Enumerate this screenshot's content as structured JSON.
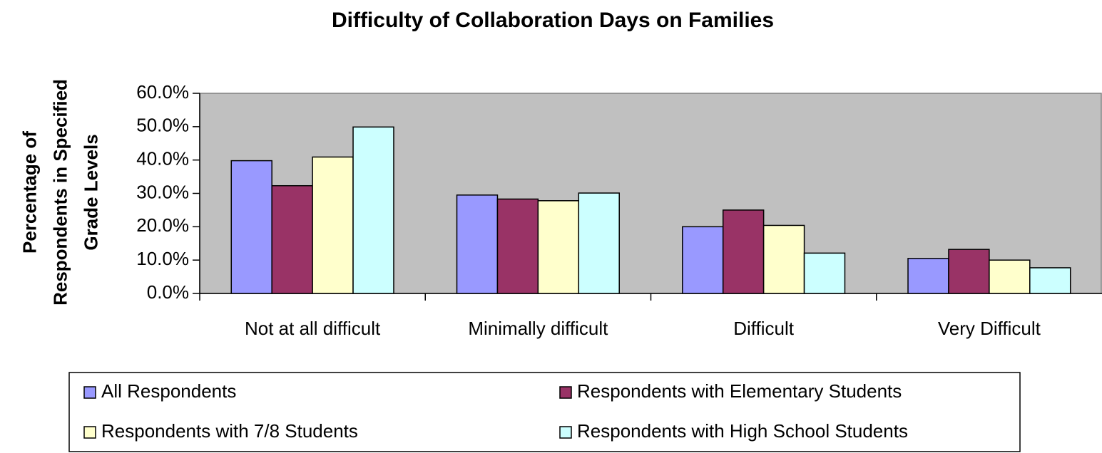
{
  "chart_data": {
    "type": "bar",
    "title": "Difficulty of Collaboration Days on Families",
    "ylabel": "Percentage of Respondents in Specified Grade Levels",
    "categories": [
      "Not at all difficult",
      "Minimally difficult",
      "Difficult",
      "Very Difficult"
    ],
    "series": [
      {
        "name": "All Respondents",
        "color": "#9999ff",
        "values": [
          39.8,
          29.5,
          20.0,
          10.5
        ]
      },
      {
        "name": "Respondents with Elementary Students",
        "color": "#993366",
        "values": [
          32.3,
          28.3,
          25.0,
          13.2
        ]
      },
      {
        "name": "Respondents with 7/8 Students",
        "color": "#ffffcc",
        "values": [
          40.9,
          27.8,
          20.4,
          10.0
        ]
      },
      {
        "name": "Respondents with High School Students",
        "color": "#ccffff",
        "values": [
          49.9,
          30.1,
          12.1,
          7.7
        ]
      }
    ],
    "ylim": [
      0,
      60
    ],
    "yticks": [
      {
        "value": 0,
        "label": "0.0%"
      },
      {
        "value": 10,
        "label": "10.0%"
      },
      {
        "value": 20,
        "label": "20.0%"
      },
      {
        "value": 30,
        "label": "30.0%"
      },
      {
        "value": 40,
        "label": "40.0%"
      },
      {
        "value": 50,
        "label": "50.0%"
      },
      {
        "value": 60,
        "label": "60.0%"
      }
    ],
    "grid": false,
    "legend": "bottom",
    "plot_background": "#c0c0c0"
  }
}
